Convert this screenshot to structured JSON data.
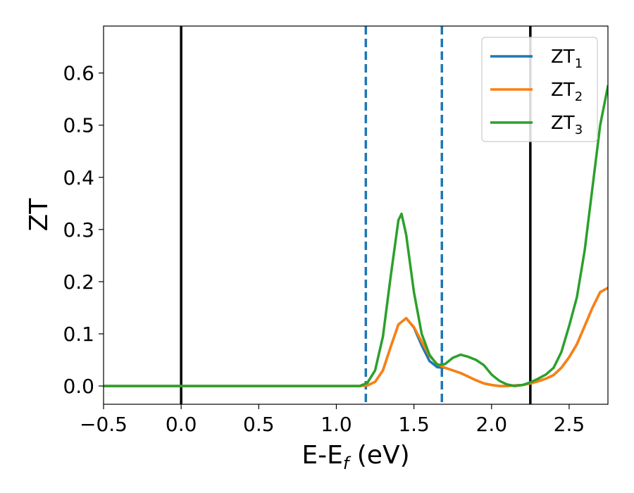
{
  "chart_data": {
    "type": "line",
    "xlabel": "E-E",
    "xlabel_sub": "f",
    "xlabel_suffix": " (eV)",
    "ylabel": "ZT",
    "xlim": [
      -0.5,
      2.75
    ],
    "ylim": [
      -0.035,
      0.69
    ],
    "x_ticks": [
      -0.5,
      0.0,
      0.5,
      1.0,
      1.5,
      2.0,
      2.5
    ],
    "x_tick_labels": [
      "−0.5",
      "0.0",
      "0.5",
      "1.0",
      "1.5",
      "2.0",
      "2.5"
    ],
    "y_ticks": [
      0.0,
      0.1,
      0.2,
      0.3,
      0.4,
      0.5,
      0.6
    ],
    "y_tick_labels": [
      "0.0",
      "0.1",
      "0.2",
      "0.3",
      "0.4",
      "0.5",
      "0.6"
    ],
    "grid": false,
    "legend_position": "top-right",
    "vlines": [
      {
        "x": 0.0,
        "style": "solid",
        "color": "#000000"
      },
      {
        "x": 2.25,
        "style": "solid",
        "color": "#000000"
      },
      {
        "x": 1.19,
        "style": "dashed",
        "color": "#1f77b4"
      },
      {
        "x": 1.68,
        "style": "dashed",
        "color": "#1f77b4"
      }
    ],
    "series": [
      {
        "name": "ZT",
        "sub": "1",
        "color": "#1f77b4",
        "points": [
          [
            -0.5,
            0
          ],
          [
            1.15,
            0
          ],
          [
            1.2,
            0.001
          ],
          [
            1.25,
            0.008
          ],
          [
            1.3,
            0.03
          ],
          [
            1.35,
            0.075
          ],
          [
            1.4,
            0.118
          ],
          [
            1.45,
            0.13
          ],
          [
            1.5,
            0.112
          ],
          [
            1.55,
            0.078
          ],
          [
            1.6,
            0.048
          ],
          [
            1.65,
            0.036
          ],
          [
            1.7,
            0.035
          ],
          [
            1.75,
            0.03
          ],
          [
            1.8,
            0.025
          ],
          [
            1.85,
            0.018
          ],
          [
            1.9,
            0.011
          ],
          [
            1.95,
            0.005
          ],
          [
            2.0,
            0.002
          ],
          [
            2.05,
            0.0
          ],
          [
            2.1,
            0.0
          ],
          [
            2.15,
            0.001
          ],
          [
            2.2,
            0.002
          ],
          [
            2.25,
            0.005
          ],
          [
            2.3,
            0.009
          ],
          [
            2.35,
            0.014
          ],
          [
            2.4,
            0.021
          ],
          [
            2.45,
            0.035
          ],
          [
            2.5,
            0.055
          ],
          [
            2.55,
            0.08
          ],
          [
            2.6,
            0.115
          ],
          [
            2.65,
            0.15
          ],
          [
            2.7,
            0.18
          ],
          [
            2.75,
            0.188
          ]
        ]
      },
      {
        "name": "ZT",
        "sub": "2",
        "color": "#ff7f0e",
        "points": [
          [
            -0.5,
            0
          ],
          [
            1.15,
            0
          ],
          [
            1.2,
            0.001
          ],
          [
            1.25,
            0.008
          ],
          [
            1.3,
            0.03
          ],
          [
            1.35,
            0.075
          ],
          [
            1.4,
            0.118
          ],
          [
            1.45,
            0.13
          ],
          [
            1.5,
            0.113
          ],
          [
            1.55,
            0.085
          ],
          [
            1.6,
            0.058
          ],
          [
            1.65,
            0.042
          ],
          [
            1.7,
            0.035
          ],
          [
            1.75,
            0.03
          ],
          [
            1.8,
            0.025
          ],
          [
            1.85,
            0.018
          ],
          [
            1.9,
            0.011
          ],
          [
            1.95,
            0.005
          ],
          [
            2.0,
            0.002
          ],
          [
            2.05,
            0.0
          ],
          [
            2.1,
            0.0
          ],
          [
            2.15,
            0.001
          ],
          [
            2.2,
            0.002
          ],
          [
            2.25,
            0.005
          ],
          [
            2.3,
            0.009
          ],
          [
            2.35,
            0.014
          ],
          [
            2.4,
            0.021
          ],
          [
            2.45,
            0.035
          ],
          [
            2.5,
            0.055
          ],
          [
            2.55,
            0.08
          ],
          [
            2.6,
            0.115
          ],
          [
            2.65,
            0.15
          ],
          [
            2.7,
            0.18
          ],
          [
            2.75,
            0.188
          ]
        ]
      },
      {
        "name": "ZT",
        "sub": "3",
        "color": "#2ca02c",
        "points": [
          [
            -0.5,
            0
          ],
          [
            1.15,
            0
          ],
          [
            1.2,
            0.006
          ],
          [
            1.25,
            0.03
          ],
          [
            1.3,
            0.095
          ],
          [
            1.35,
            0.21
          ],
          [
            1.4,
            0.318
          ],
          [
            1.42,
            0.33
          ],
          [
            1.45,
            0.29
          ],
          [
            1.5,
            0.18
          ],
          [
            1.55,
            0.1
          ],
          [
            1.6,
            0.06
          ],
          [
            1.65,
            0.04
          ],
          [
            1.7,
            0.042
          ],
          [
            1.75,
            0.054
          ],
          [
            1.8,
            0.06
          ],
          [
            1.85,
            0.056
          ],
          [
            1.9,
            0.05
          ],
          [
            1.95,
            0.04
          ],
          [
            2.0,
            0.022
          ],
          [
            2.05,
            0.01
          ],
          [
            2.1,
            0.003
          ],
          [
            2.15,
            0.0
          ],
          [
            2.2,
            0.002
          ],
          [
            2.25,
            0.007
          ],
          [
            2.3,
            0.014
          ],
          [
            2.35,
            0.022
          ],
          [
            2.4,
            0.035
          ],
          [
            2.45,
            0.065
          ],
          [
            2.5,
            0.115
          ],
          [
            2.55,
            0.17
          ],
          [
            2.6,
            0.26
          ],
          [
            2.65,
            0.38
          ],
          [
            2.7,
            0.5
          ],
          [
            2.75,
            0.575
          ]
        ]
      }
    ]
  }
}
